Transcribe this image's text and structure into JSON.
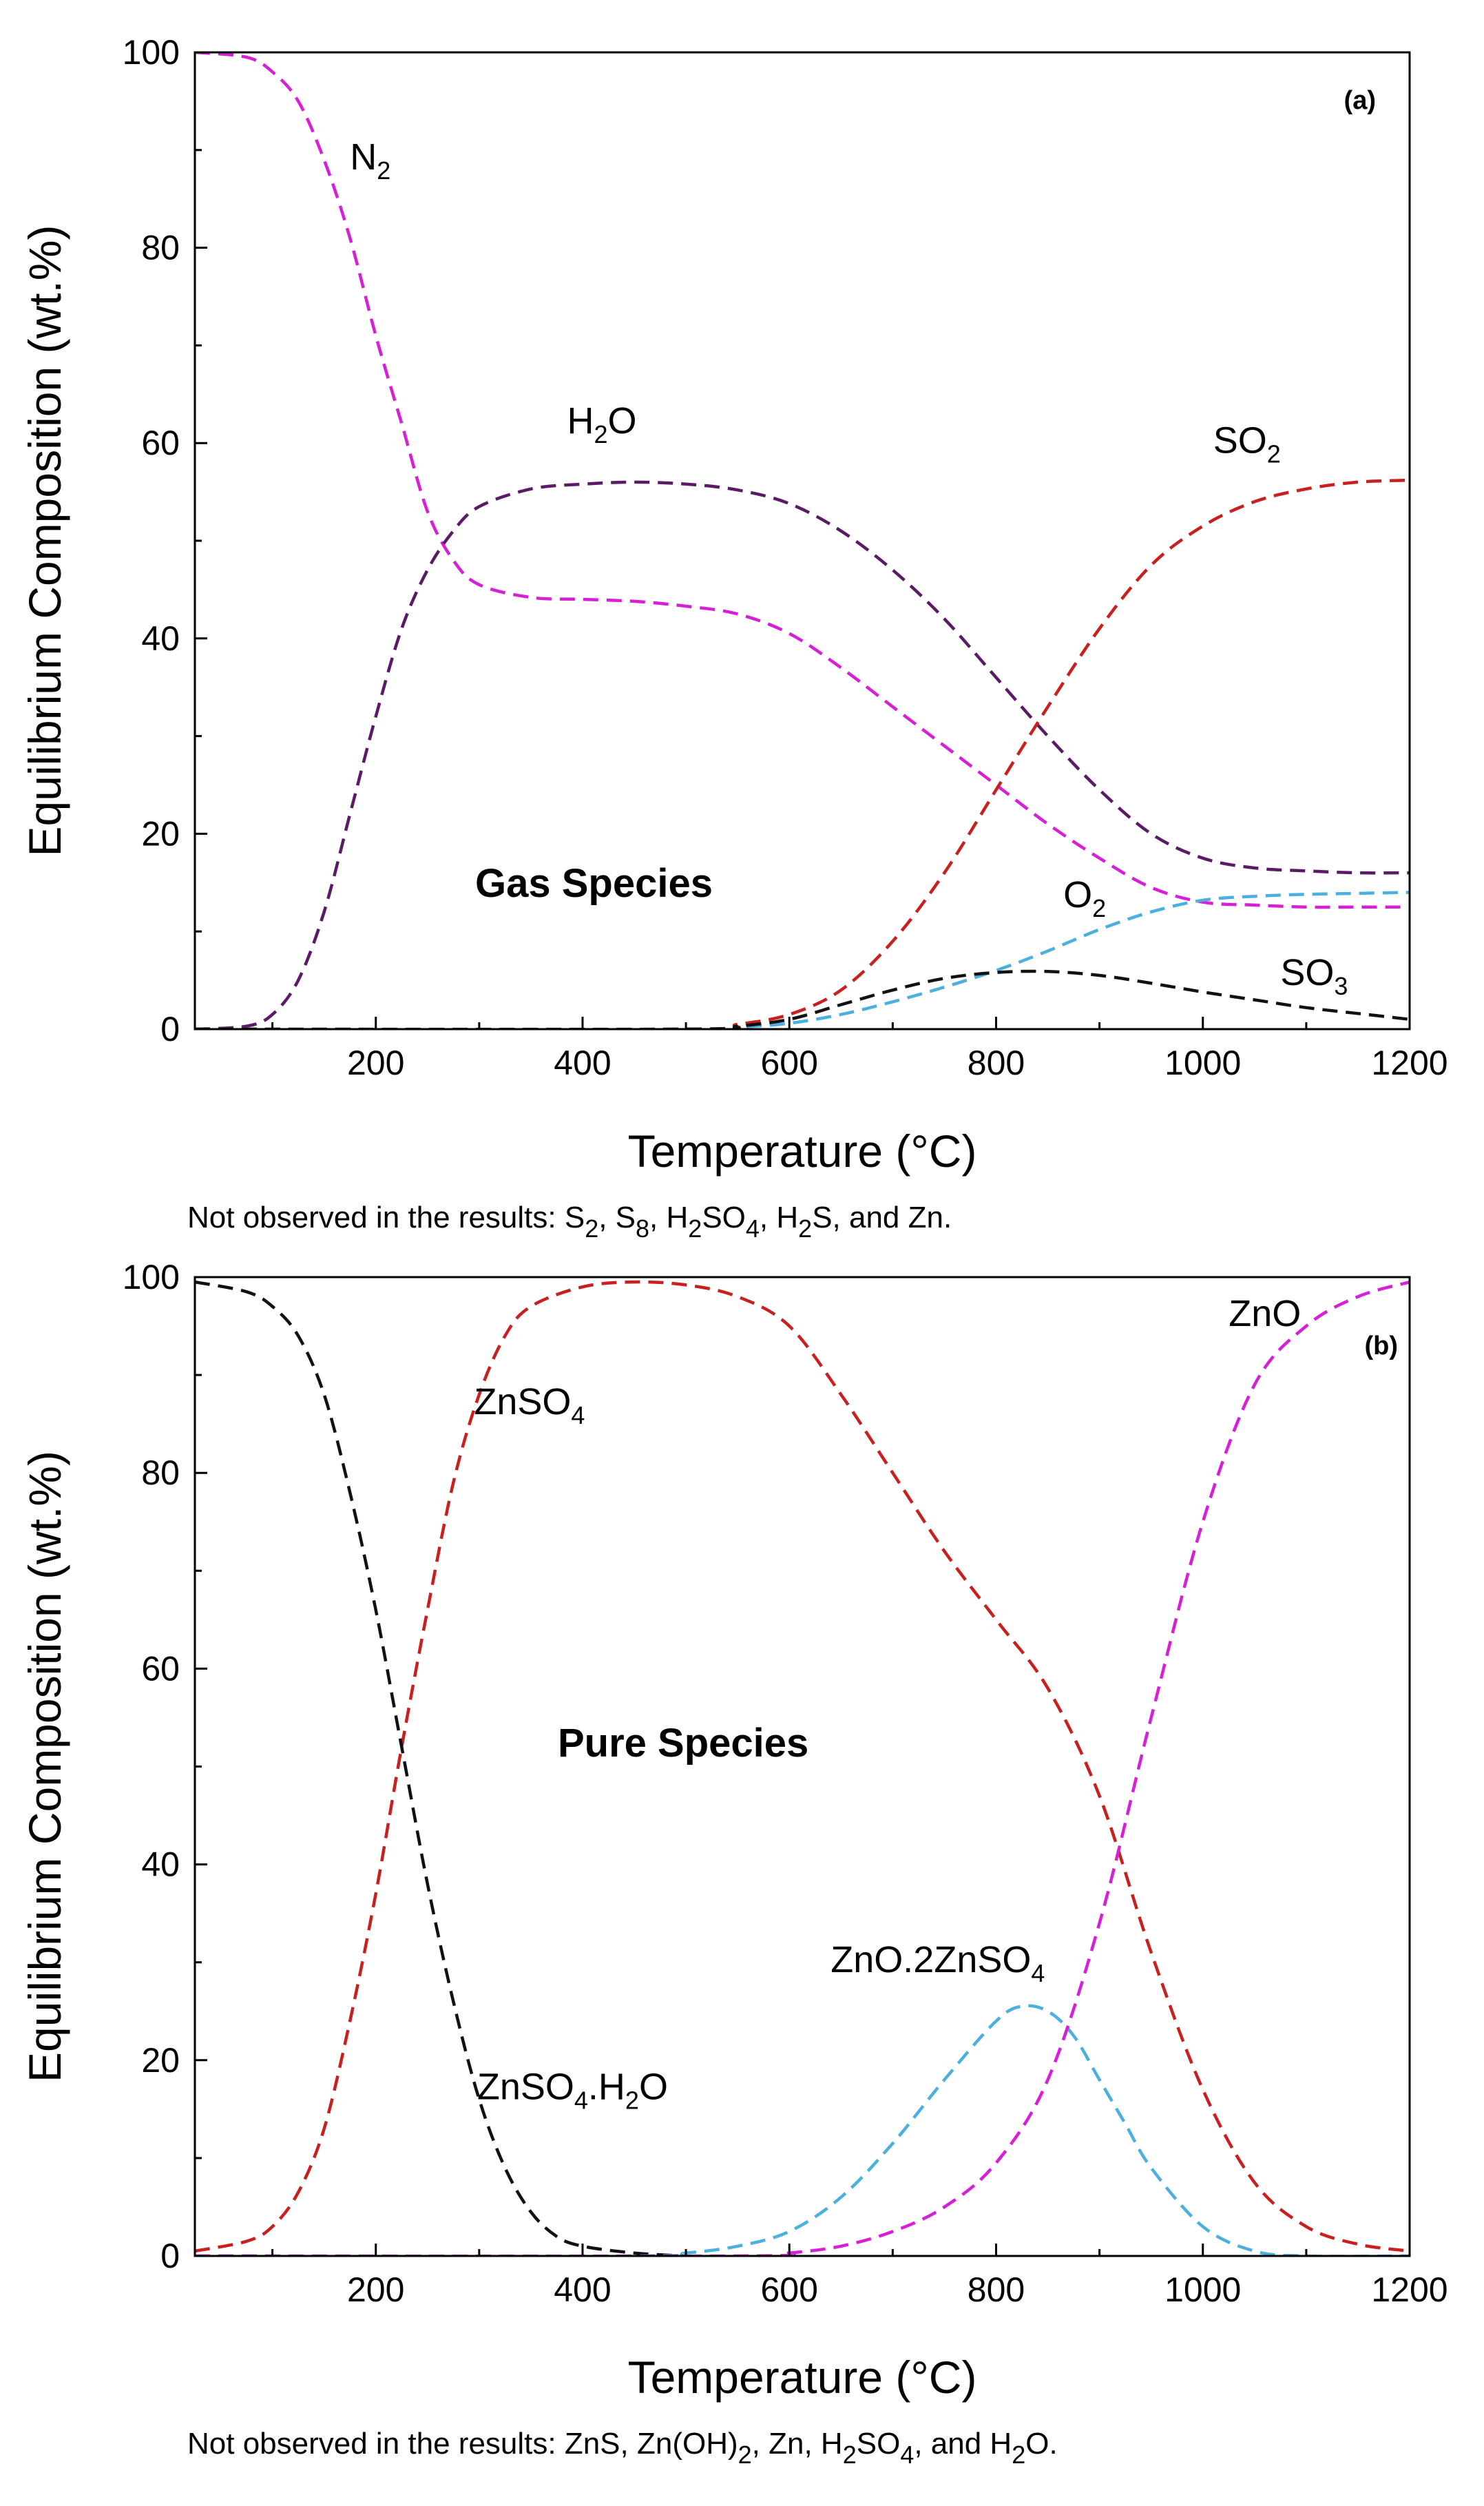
{
  "figure": {
    "panel_a": {
      "tag": "(a)",
      "xlabel": "Temperature (°C)",
      "ylabel": "Equilibrium Composition (wt.%)",
      "region_label": "Gas Species",
      "footnote": {
        "parts": [
          {
            "t": "Not observed in the results: S"
          },
          {
            "sub": "2"
          },
          {
            "t": ", S"
          },
          {
            "sub": "8"
          },
          {
            "t": ", H"
          },
          {
            "sub": "2"
          },
          {
            "t": "SO"
          },
          {
            "sub": "4"
          },
          {
            "t": ", H"
          },
          {
            "sub": "2"
          },
          {
            "t": "S, and Zn."
          }
        ]
      }
    },
    "panel_b": {
      "tag": "(b)",
      "xlabel": "Temperature (°C)",
      "ylabel": "Equilibrium Composition (wt.%)",
      "region_label": "Pure Species",
      "footnote": {
        "parts": [
          {
            "t": "Not observed in the results: ZnS, Zn(OH)"
          },
          {
            "sub": "2"
          },
          {
            "t": ", Zn, H"
          },
          {
            "sub": "2"
          },
          {
            "t": "SO"
          },
          {
            "sub": "4"
          },
          {
            "t": ", and H"
          },
          {
            "sub": "2"
          },
          {
            "t": "O."
          }
        ]
      }
    }
  },
  "chart_data": [
    {
      "type": "line",
      "panel": "a",
      "title": "",
      "xlabel": "Temperature (°C)",
      "ylabel": "Equilibrium Composition (wt.%)",
      "xlim": [
        25,
        1200
      ],
      "ylim": [
        0,
        100
      ],
      "xticks": [
        200,
        400,
        600,
        800,
        1000,
        1200
      ],
      "yticks": [
        0,
        20,
        40,
        60,
        80,
        100
      ],
      "grid": false,
      "line_style": "dashed",
      "series": [
        {
          "name": "N2",
          "label_parts": [
            {
              "t": "N"
            },
            {
              "sub": "2"
            }
          ],
          "label_at": [
            175,
            88
          ],
          "color": "#d61fd6",
          "points": [
            [
              25,
              100
            ],
            [
              75,
              99.5
            ],
            [
              100,
              98
            ],
            [
              125,
              95
            ],
            [
              150,
              89
            ],
            [
              175,
              81
            ],
            [
              200,
              71
            ],
            [
              225,
              62
            ],
            [
              250,
              53
            ],
            [
              275,
              48
            ],
            [
              300,
              45.5
            ],
            [
              350,
              44.2
            ],
            [
              400,
              44
            ],
            [
              450,
              43.8
            ],
            [
              500,
              43.3
            ],
            [
              550,
              42.5
            ],
            [
              600,
              40.5
            ],
            [
              650,
              37
            ],
            [
              700,
              33
            ],
            [
              750,
              29
            ],
            [
              800,
              25
            ],
            [
              850,
              21
            ],
            [
              900,
              17.5
            ],
            [
              950,
              14.5
            ],
            [
              1000,
              13
            ],
            [
              1050,
              12.7
            ],
            [
              1100,
              12.5
            ],
            [
              1150,
              12.5
            ],
            [
              1200,
              12.5
            ]
          ]
        },
        {
          "name": "H2O",
          "label_parts": [
            {
              "t": "H"
            },
            {
              "sub": "2"
            },
            {
              "t": "O"
            }
          ],
          "label_at": [
            385,
            61
          ],
          "color": "#5a1a66",
          "points": [
            [
              25,
              0
            ],
            [
              75,
              0.3
            ],
            [
              100,
              1.5
            ],
            [
              125,
              5
            ],
            [
              150,
              12
            ],
            [
              175,
              22
            ],
            [
              200,
              32
            ],
            [
              225,
              41
            ],
            [
              250,
              47
            ],
            [
              275,
              51
            ],
            [
              300,
              53.5
            ],
            [
              350,
              55.3
            ],
            [
              400,
              55.8
            ],
            [
              450,
              56
            ],
            [
              500,
              55.8
            ],
            [
              550,
              55.2
            ],
            [
              600,
              53.8
            ],
            [
              650,
              51
            ],
            [
              700,
              47
            ],
            [
              750,
              42
            ],
            [
              800,
              36
            ],
            [
              850,
              30
            ],
            [
              900,
              24.5
            ],
            [
              950,
              20
            ],
            [
              1000,
              17.5
            ],
            [
              1050,
              16.5
            ],
            [
              1100,
              16.2
            ],
            [
              1150,
              16
            ],
            [
              1200,
              16
            ]
          ]
        },
        {
          "name": "SO2",
          "label_parts": [
            {
              "t": "SO"
            },
            {
              "sub": "2"
            }
          ],
          "label_at": [
            1010,
            59
          ],
          "color": "#c8201e",
          "points": [
            [
              25,
              0
            ],
            [
              500,
              0
            ],
            [
              550,
              0.5
            ],
            [
              600,
              1.5
            ],
            [
              650,
              4
            ],
            [
              700,
              9
            ],
            [
              750,
              16
            ],
            [
              800,
              24.5
            ],
            [
              850,
              33
            ],
            [
              900,
              41
            ],
            [
              950,
              47.5
            ],
            [
              1000,
              51.5
            ],
            [
              1050,
              54
            ],
            [
              1100,
              55.3
            ],
            [
              1150,
              56
            ],
            [
              1200,
              56.2
            ]
          ]
        },
        {
          "name": "O2",
          "label_parts": [
            {
              "t": "O"
            },
            {
              "sub": "2"
            }
          ],
          "label_at": [
            865,
            12.5
          ],
          "color": "#4bb0de",
          "points": [
            [
              25,
              0
            ],
            [
              500,
              0
            ],
            [
              550,
              0.2
            ],
            [
              600,
              0.6
            ],
            [
              650,
              1.5
            ],
            [
              700,
              2.8
            ],
            [
              750,
              4.3
            ],
            [
              800,
              6
            ],
            [
              850,
              8
            ],
            [
              900,
              10.2
            ],
            [
              950,
              12
            ],
            [
              1000,
              13.2
            ],
            [
              1050,
              13.6
            ],
            [
              1100,
              13.8
            ],
            [
              1150,
              13.9
            ],
            [
              1200,
              14
            ]
          ]
        },
        {
          "name": "SO3",
          "label_parts": [
            {
              "t": "SO"
            },
            {
              "sub": "3"
            }
          ],
          "label_at": [
            1075,
            4.5
          ],
          "color": "#111111",
          "points": [
            [
              25,
              0
            ],
            [
              500,
              0
            ],
            [
              550,
              0.3
            ],
            [
              600,
              1
            ],
            [
              650,
              2.5
            ],
            [
              700,
              4
            ],
            [
              750,
              5.2
            ],
            [
              800,
              5.8
            ],
            [
              850,
              5.9
            ],
            [
              900,
              5.5
            ],
            [
              950,
              4.7
            ],
            [
              1000,
              3.8
            ],
            [
              1050,
              3
            ],
            [
              1100,
              2.2
            ],
            [
              1150,
              1.6
            ],
            [
              1200,
              1
            ]
          ]
        }
      ]
    },
    {
      "type": "line",
      "panel": "b",
      "title": "",
      "xlabel": "Temperature (°C)",
      "ylabel": "Equilibrium Composition (wt.%)",
      "xlim": [
        25,
        1200
      ],
      "ylim": [
        0,
        100
      ],
      "xticks": [
        200,
        400,
        600,
        800,
        1000,
        1200
      ],
      "yticks": [
        0,
        20,
        40,
        60,
        80,
        100
      ],
      "grid": false,
      "line_style": "dashed",
      "series": [
        {
          "name": "ZnSO4",
          "label_parts": [
            {
              "t": "ZnSO"
            },
            {
              "sub": "4"
            }
          ],
          "label_at": [
            295,
            86
          ],
          "color": "#c8201e",
          "points": [
            [
              25,
              0.5
            ],
            [
              75,
              1.5
            ],
            [
              100,
              3
            ],
            [
              125,
              6.5
            ],
            [
              150,
              13
            ],
            [
              175,
              24
            ],
            [
              200,
              37
            ],
            [
              225,
              52
            ],
            [
              250,
              66
            ],
            [
              275,
              79
            ],
            [
              300,
              88
            ],
            [
              325,
              94
            ],
            [
              350,
              97
            ],
            [
              400,
              99
            ],
            [
              450,
              99.5
            ],
            [
              500,
              99.2
            ],
            [
              550,
              98
            ],
            [
              600,
              95
            ],
            [
              650,
              88
            ],
            [
              700,
              80
            ],
            [
              750,
              72
            ],
            [
              800,
              65
            ],
            [
              850,
              58
            ],
            [
              900,
              47
            ],
            [
              950,
              31
            ],
            [
              1000,
              17
            ],
            [
              1050,
              7.5
            ],
            [
              1100,
              3
            ],
            [
              1150,
              1.2
            ],
            [
              1200,
              0.5
            ]
          ]
        },
        {
          "name": "ZnSO4.H2O",
          "label_parts": [
            {
              "t": "ZnSO"
            },
            {
              "sub": "4"
            },
            {
              "t": ".H"
            },
            {
              "sub": "2"
            },
            {
              "t": "O"
            }
          ],
          "label_at": [
            298,
            16
          ],
          "color": "#111111",
          "points": [
            [
              25,
              99.5
            ],
            [
              75,
              98.5
            ],
            [
              100,
              97
            ],
            [
              125,
              94
            ],
            [
              150,
              88
            ],
            [
              175,
              78
            ],
            [
              200,
              66
            ],
            [
              225,
              52
            ],
            [
              250,
              38
            ],
            [
              275,
              26
            ],
            [
              300,
              16
            ],
            [
              325,
              9
            ],
            [
              350,
              4.5
            ],
            [
              375,
              2
            ],
            [
              400,
              1
            ],
            [
              450,
              0.3
            ],
            [
              500,
              0
            ]
          ]
        },
        {
          "name": "ZnO.2ZnSO4",
          "label_parts": [
            {
              "t": "ZnO.2ZnSO"
            },
            {
              "sub": "4"
            }
          ],
          "label_at": [
            640,
            29
          ],
          "color": "#4bb0de",
          "points": [
            [
              25,
              0
            ],
            [
              450,
              0
            ],
            [
              500,
              0.3
            ],
            [
              550,
              1
            ],
            [
              600,
              2.5
            ],
            [
              650,
              6
            ],
            [
              700,
              11.5
            ],
            [
              750,
              18
            ],
            [
              800,
              24
            ],
            [
              825,
              25.5
            ],
            [
              850,
              25
            ],
            [
              875,
              22.5
            ],
            [
              900,
              18
            ],
            [
              925,
              13.5
            ],
            [
              950,
              9
            ],
            [
              1000,
              3
            ],
            [
              1050,
              0.5
            ],
            [
              1100,
              0
            ],
            [
              1200,
              0
            ]
          ]
        },
        {
          "name": "ZnO",
          "label_parts": [
            {
              "t": "ZnO"
            }
          ],
          "label_at": [
            1025,
            95
          ],
          "color": "#d61fd6",
          "points": [
            [
              25,
              0
            ],
            [
              550,
              0
            ],
            [
              600,
              0.3
            ],
            [
              650,
              1
            ],
            [
              700,
              2.5
            ],
            [
              750,
              5
            ],
            [
              800,
              9.5
            ],
            [
              850,
              18
            ],
            [
              900,
              34
            ],
            [
              950,
              55
            ],
            [
              1000,
              75
            ],
            [
              1050,
              89
            ],
            [
              1100,
              95
            ],
            [
              1150,
              98
            ],
            [
              1200,
              99.5
            ]
          ]
        }
      ]
    }
  ]
}
